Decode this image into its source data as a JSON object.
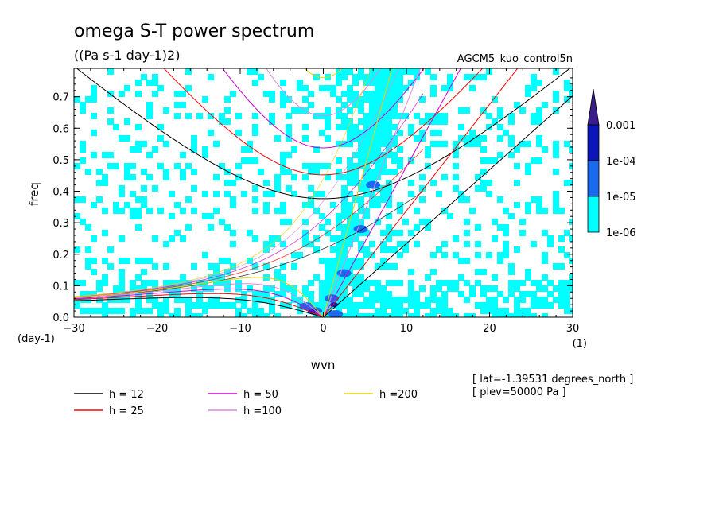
{
  "chart_data": {
    "type": "contour",
    "title": "omega S-T power spectrum",
    "subtitle": "((Pa s-1 day-1)2)",
    "run_label": "AGCM5_kuo_control5n",
    "xlabel": "wvn",
    "ylabel": "freq",
    "x_unit": "(1)",
    "y_unit": "(day-1)",
    "xlim": [
      -30,
      30
    ],
    "ylim": [
      0,
      0.79
    ],
    "xticks": [
      -30,
      -20,
      -10,
      0,
      10,
      20,
      30
    ],
    "yticks": [
      0.0,
      0.1,
      0.2,
      0.3,
      0.4,
      0.5,
      0.6,
      0.7
    ],
    "colorbar": {
      "labels": [
        "0.001",
        "1e-04",
        "1e-05",
        "1e-06"
      ],
      "colors": [
        "#3a1d8a",
        "#0a16b8",
        "#1a6af0",
        "#00ffff"
      ]
    },
    "dispersion_curves": [
      {
        "name": "h = 12",
        "h": 12,
        "color": "#000000"
      },
      {
        "name": "h = 25",
        "h": 25,
        "color": "#ff0000"
      },
      {
        "name": "h = 50",
        "h": 50,
        "color": "#cc00cc"
      },
      {
        "name": "h =100",
        "h": 100,
        "color": "#dd88dd"
      },
      {
        "name": "h =200",
        "h": 200,
        "color": "#e6d400"
      }
    ],
    "annotations": [
      "[ lat=-1.39531 degrees_north ]",
      "[ plev=50000 Pa ]"
    ]
  }
}
